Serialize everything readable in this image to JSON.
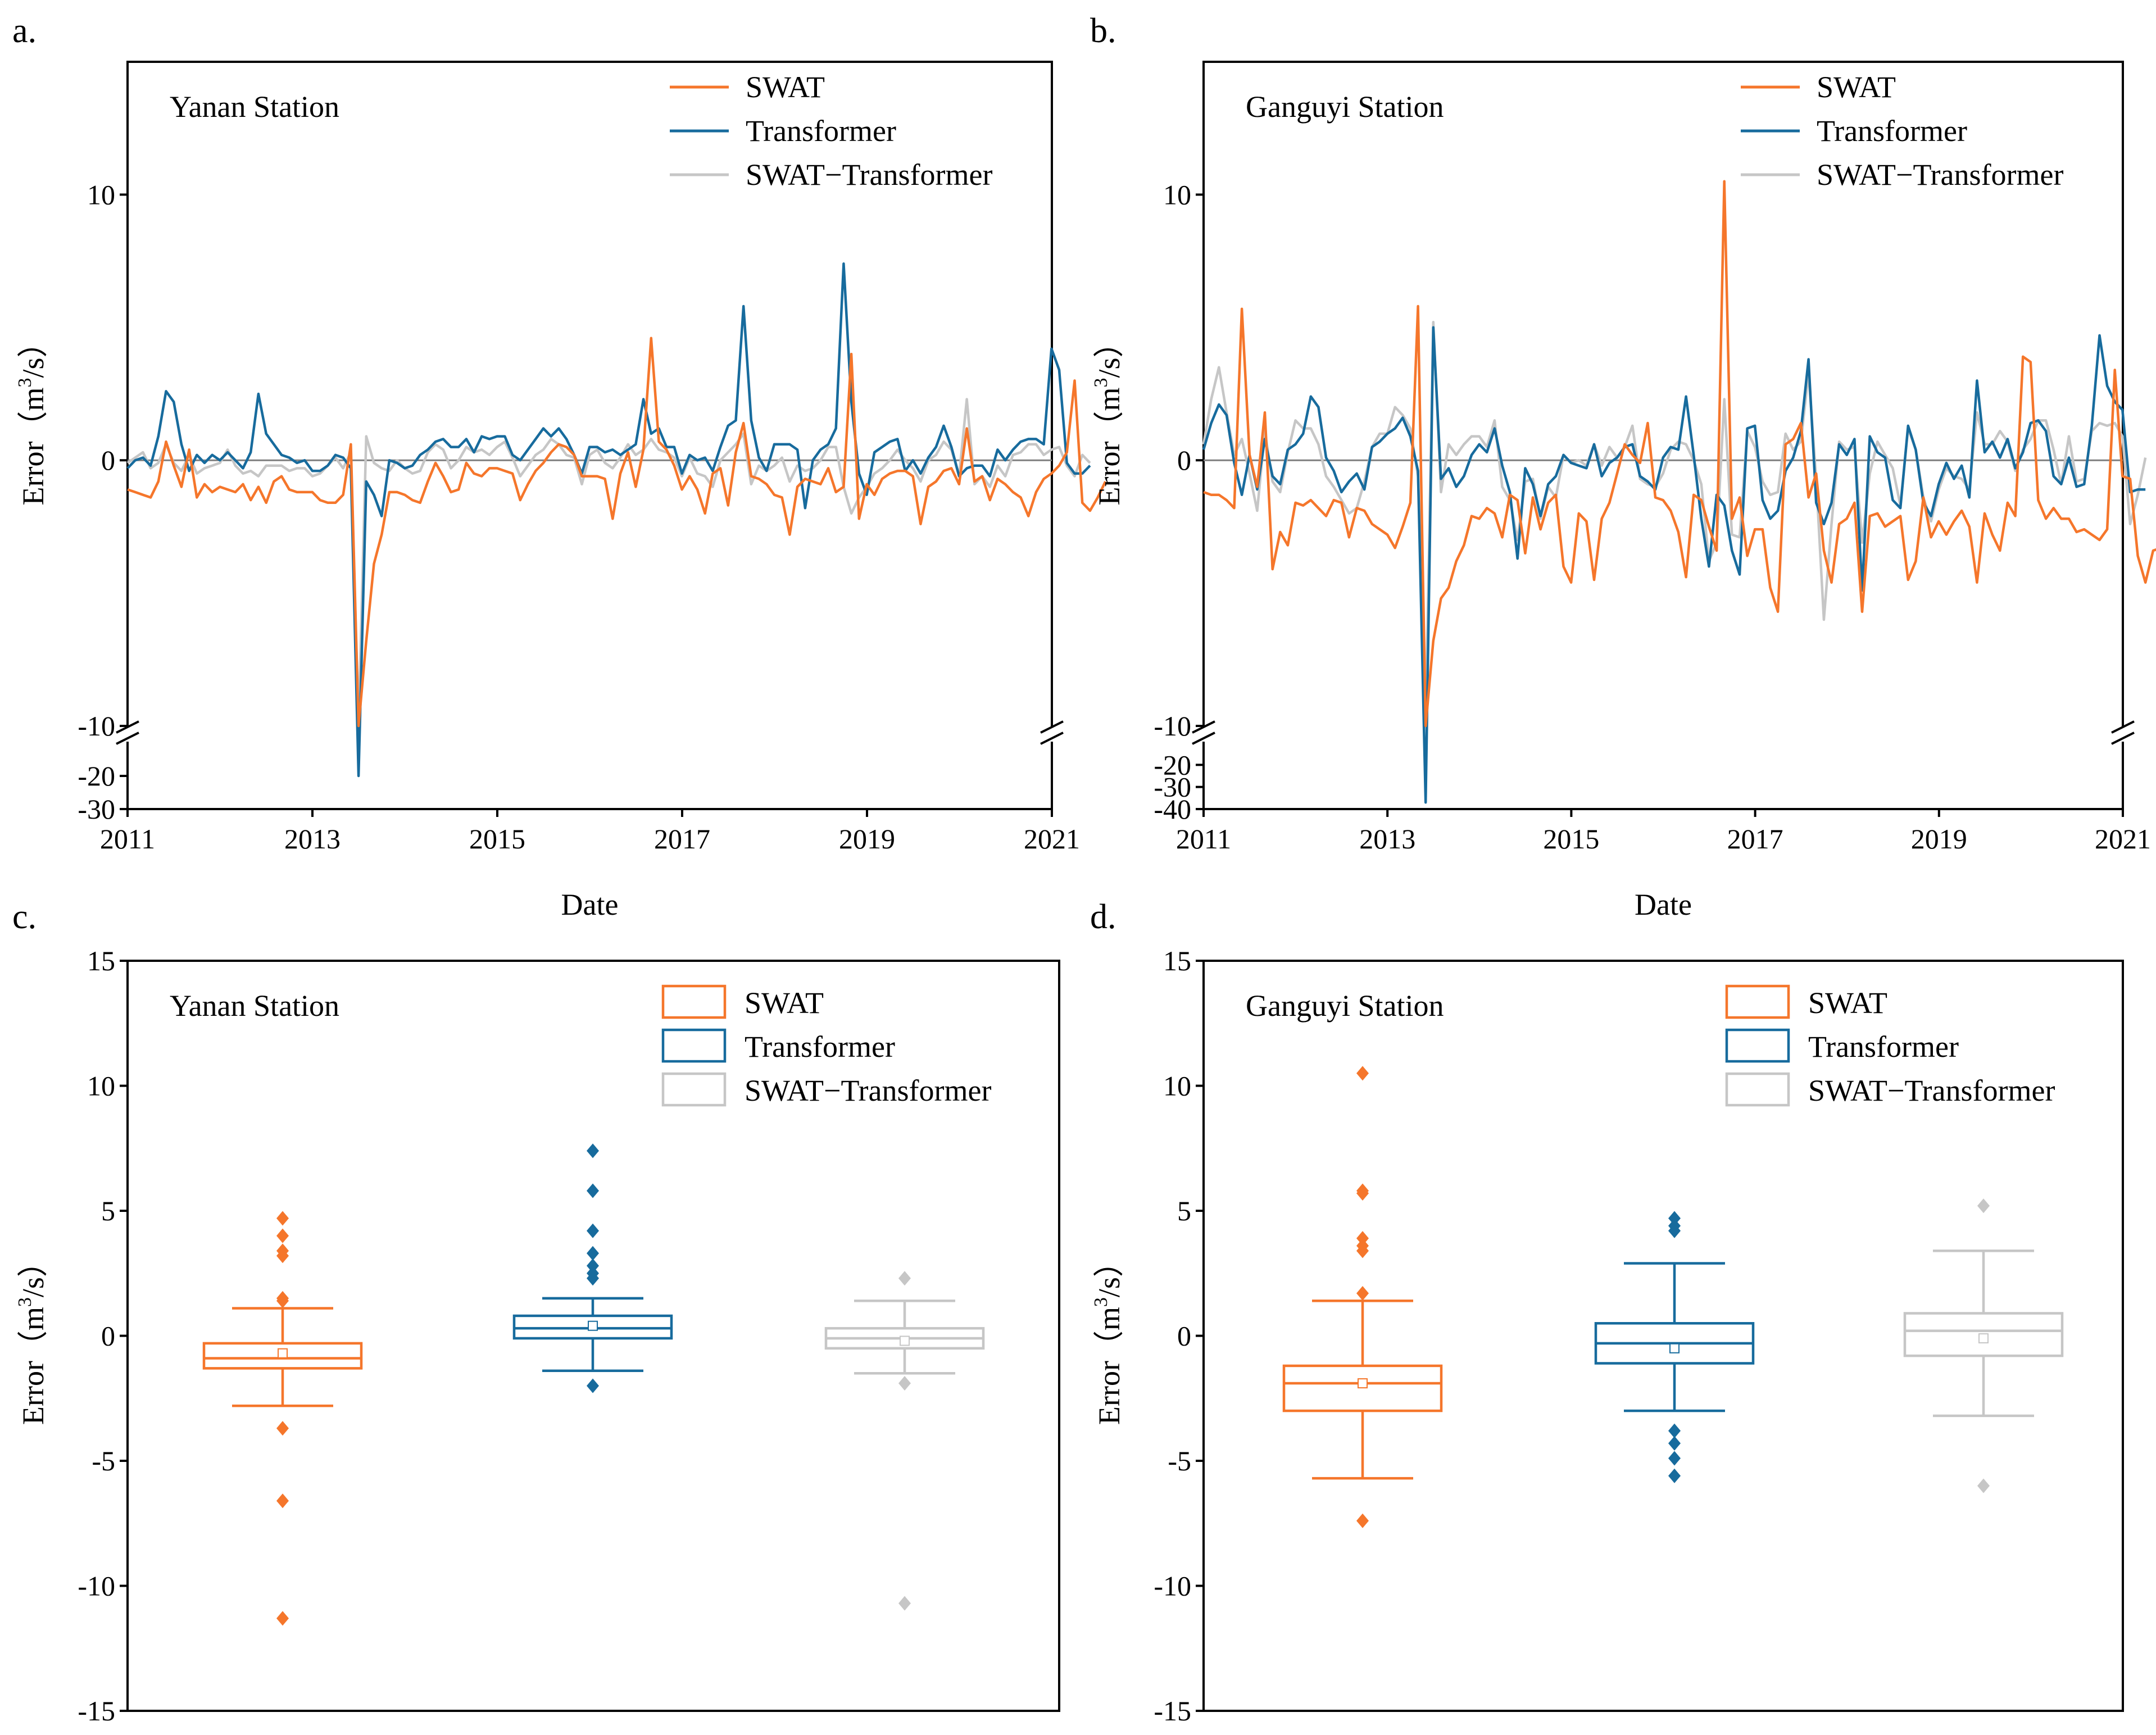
{
  "colors": {
    "swat": "#f5762b",
    "transformer": "#176b9d",
    "combo": "#c6c6c6",
    "zero_line": "#7f7f7f",
    "axis": "#000000"
  },
  "chart_data": [
    {
      "type": "line",
      "panel": "a.",
      "station": "Yanan Station",
      "xlabel": "Date",
      "ylabel": "Error（m³/s）",
      "ylabel_parts": {
        "prefix": "Error（m",
        "sup": "3",
        "suffix": "/s）"
      },
      "xlim": [
        2011,
        2021
      ],
      "x_ticks": [
        "2011",
        "2013",
        "2015",
        "2017",
        "2019",
        "2021"
      ],
      "ylim_upper": [
        -10,
        15
      ],
      "ylim_lower": [
        -30,
        -10
      ],
      "y_ticks_upper": [
        "10",
        "0",
        "-10"
      ],
      "y_ticks_lower": [
        "-20",
        "-30"
      ],
      "legend": [
        "SWAT",
        "Transformer",
        "SWAT−Transformer"
      ],
      "x_start": 2011.0,
      "x_step": 0.0833,
      "series": [
        {
          "name": "SWAT",
          "values": [
            -1.1,
            -1.2,
            -1.3,
            -1.4,
            -0.8,
            0.7,
            -0.2,
            -1.0,
            0.4,
            -1.4,
            -0.9,
            -1.2,
            -1.0,
            -1.1,
            -1.2,
            -0.9,
            -1.5,
            -1.0,
            -1.6,
            -0.8,
            -0.6,
            -1.1,
            -1.2,
            -1.2,
            -1.2,
            -1.5,
            -1.6,
            -1.6,
            -1.3,
            0.6,
            -10,
            -6.8,
            -3.9,
            -2.8,
            -1.2,
            -1.2,
            -1.3,
            -1.5,
            -1.6,
            -0.8,
            -0.1,
            -0.6,
            -1.2,
            -1.1,
            -0.1,
            -0.5,
            -0.6,
            -0.3,
            -0.3,
            -0.4,
            -0.5,
            -1.5,
            -0.9,
            -0.4,
            -0.1,
            0.3,
            0.6,
            0.5,
            0.2,
            -0.6,
            -0.6,
            -0.6,
            -0.7,
            -2.2,
            -0.5,
            0.3,
            -1.0,
            0.4,
            4.6,
            0.7,
            0.4,
            -0.2,
            -1.1,
            -0.6,
            -1.1,
            -2.0,
            -0.5,
            -0.3,
            -1.7,
            0.3,
            1.4,
            -0.6,
            -0.7,
            -0.9,
            -1.3,
            -1.4,
            -2.8,
            -1.0,
            -0.7,
            -0.8,
            -0.9,
            -0.3,
            -1.2,
            -1.0,
            4.0,
            -2.2,
            -0.9,
            -1.3,
            -0.7,
            -0.5,
            -0.4,
            -0.4,
            -0.6,
            -2.4,
            -1.0,
            -0.8,
            -0.4,
            -0.3,
            -0.9,
            1.2,
            -0.8,
            -0.6,
            -1.5,
            -0.7,
            -0.9,
            -1.2,
            -1.4,
            -2.1,
            -1.2,
            -0.7,
            -0.5,
            -0.2,
            0.3,
            3.0,
            -1.6,
            -1.9,
            -1.4,
            -0.8
          ]
        },
        {
          "name": "Transformer",
          "values": [
            -0.3,
            0.0,
            0.1,
            -0.2,
            0.9,
            2.6,
            2.2,
            0.6,
            -0.4,
            0.2,
            -0.1,
            0.2,
            0.0,
            0.3,
            0.0,
            -0.3,
            0.3,
            2.5,
            1.0,
            0.6,
            0.2,
            0.1,
            -0.1,
            0.0,
            -0.4,
            -0.4,
            -0.2,
            0.2,
            0.1,
            -0.3,
            -20.0,
            -0.8,
            -1.3,
            -2.1,
            0.0,
            -0.1,
            -0.3,
            -0.2,
            0.2,
            0.4,
            0.7,
            0.8,
            0.5,
            0.5,
            0.8,
            0.3,
            0.9,
            0.8,
            0.9,
            0.9,
            0.2,
            0.0,
            0.4,
            0.8,
            1.2,
            0.9,
            1.2,
            0.8,
            0.2,
            -0.5,
            0.5,
            0.5,
            0.3,
            0.4,
            0.2,
            0.4,
            0.6,
            2.3,
            1.0,
            1.2,
            0.5,
            0.5,
            -0.5,
            0.2,
            0.0,
            0.1,
            -0.4,
            0.5,
            1.3,
            1.5,
            5.8,
            1.5,
            0.1,
            -0.4,
            0.6,
            0.6,
            0.6,
            0.4,
            -1.8,
            0.0,
            0.4,
            0.6,
            1.2,
            7.4,
            2.2,
            -0.5,
            -1.3,
            0.3,
            0.5,
            0.7,
            0.8,
            -0.4,
            0.0,
            -0.5,
            0.1,
            0.5,
            1.3,
            0.5,
            -0.6,
            -0.3,
            -0.2,
            -0.2,
            -0.6,
            0.4,
            0.0,
            0.4,
            0.7,
            0.8,
            0.8,
            0.6,
            4.2,
            3.4,
            -0.1,
            -0.5,
            -0.5,
            -0.2
          ]
        },
        {
          "name": "SWAT−Transformer",
          "values": [
            -0.1,
            0.1,
            0.3,
            -0.3,
            -0.1,
            0.6,
            -0.1,
            -0.4,
            0.2,
            -0.5,
            -0.3,
            -0.2,
            -0.1,
            0.4,
            -0.2,
            -0.5,
            -0.4,
            -0.6,
            -0.2,
            -0.2,
            -0.2,
            -0.4,
            -0.3,
            -0.3,
            -0.6,
            -0.5,
            -0.2,
            0.1,
            -0.3,
            0.3,
            -10,
            0.9,
            -0.1,
            -0.3,
            -0.4,
            0.0,
            -0.3,
            -0.5,
            -0.4,
            0.3,
            0.6,
            0.4,
            -0.3,
            0.0,
            0.5,
            0.3,
            0.4,
            0.2,
            0.5,
            0.7,
            0.1,
            -0.6,
            -0.2,
            0.2,
            0.4,
            0.8,
            0.6,
            0.2,
            0.1,
            -0.9,
            0.2,
            0.4,
            -0.1,
            -0.3,
            0.1,
            0.6,
            0.2,
            0.4,
            0.8,
            0.4,
            0.3,
            0.1,
            -0.6,
            0.1,
            -0.5,
            -0.6,
            -1.0,
            0.0,
            0.3,
            0.6,
            1.0,
            -0.9,
            -0.2,
            -0.4,
            -0.2,
            0.1,
            -0.8,
            -0.2,
            -0.4,
            -0.3,
            0.0,
            0.5,
            0.5,
            -1.0,
            -2.0,
            -1.4,
            -1.0,
            -0.5,
            -0.3,
            0.0,
            0.4,
            0.0,
            -0.3,
            -0.8,
            0.0,
            0.2,
            0.7,
            0.4,
            -0.6,
            2.3,
            -0.9,
            -0.6,
            -1.0,
            -0.2,
            -0.6,
            0.2,
            0.3,
            0.6,
            0.6,
            0.2,
            0.4,
            0.5,
            -0.2,
            -0.6,
            0.2,
            -0.1
          ]
        }
      ]
    },
    {
      "type": "line",
      "panel": "b.",
      "station": "Ganguyi Station",
      "xlabel": "Date",
      "ylabel": "Error（m³/s）",
      "ylabel_parts": {
        "prefix": "Error（m",
        "sup": "3",
        "suffix": "/s）"
      },
      "xlim": [
        2011,
        2021
      ],
      "x_ticks": [
        "2011",
        "2013",
        "2015",
        "2017",
        "2019",
        "2021"
      ],
      "ylim_upper": [
        -10,
        15
      ],
      "ylim_lower": [
        -40,
        -10
      ],
      "y_ticks_upper": [
        "10",
        "0",
        "-10"
      ],
      "y_ticks_lower": [
        "-20",
        "-30",
        "-40"
      ],
      "legend": [
        "SWAT",
        "Transformer",
        "SWAT−Transformer"
      ],
      "x_start": 2011.0,
      "x_step": 0.0833,
      "series": [
        {
          "name": "SWAT",
          "values": [
            -1.2,
            -1.3,
            -1.3,
            -1.5,
            -1.8,
            5.7,
            0.2,
            -1.0,
            1.8,
            -4.1,
            -2.7,
            -3.2,
            -1.6,
            -1.7,
            -1.5,
            -1.8,
            -2.1,
            -1.5,
            -1.6,
            -2.9,
            -1.8,
            -1.9,
            -2.4,
            -2.6,
            -2.8,
            -3.3,
            -2.5,
            -1.6,
            5.8,
            -10,
            -6.8,
            -5.2,
            -4.8,
            -3.8,
            -3.2,
            -2.1,
            -2.2,
            -1.8,
            -2.0,
            -2.9,
            -1.3,
            -1.5,
            -3.5,
            -1.4,
            -2.6,
            -1.6,
            -1.3,
            -4.0,
            -4.6,
            -2.0,
            -2.3,
            -4.5,
            -2.2,
            -1.6,
            -0.5,
            0.6,
            0.2,
            -0.1,
            1.4,
            -1.4,
            -1.5,
            -1.9,
            -2.7,
            -4.4,
            -1.3,
            -1.5,
            -2.5,
            -3.4,
            10.5,
            -2.2,
            -1.4,
            -3.6,
            -2.6,
            -2.6,
            -4.8,
            -5.7,
            0.6,
            0.8,
            1.4,
            -1.4,
            -0.5,
            -3.4,
            -4.6,
            -2.4,
            -2.2,
            -1.6,
            -5.7,
            -2.1,
            -2.0,
            -2.5,
            -2.3,
            -2.1,
            -4.5,
            -3.8,
            -1.4,
            -2.9,
            -2.3,
            -2.8,
            -2.3,
            -1.9,
            -2.5,
            -4.6,
            -2.0,
            -2.8,
            -3.4,
            -1.6,
            -2.1,
            3.9,
            3.7,
            -1.5,
            -2.2,
            -1.8,
            -2.2,
            -2.2,
            -2.7,
            -2.6,
            -2.8,
            -3.0,
            -2.6,
            3.4,
            -0.6,
            -0.7,
            -3.6,
            -4.6,
            -3.4,
            -3.3
          ]
        },
        {
          "name": "Transformer",
          "values": [
            0.4,
            1.4,
            2.1,
            1.7,
            -0.1,
            -1.3,
            0.2,
            -1.1,
            0.8,
            -0.6,
            -0.9,
            0.4,
            0.6,
            1.0,
            2.4,
            2.0,
            0.1,
            -0.4,
            -1.2,
            -0.8,
            -0.5,
            -1.1,
            0.5,
            0.7,
            1.0,
            1.2,
            1.6,
            0.9,
            -0.4,
            -37.0,
            5.0,
            -0.7,
            -0.3,
            -1.0,
            -0.6,
            0.2,
            0.6,
            0.3,
            1.2,
            -0.2,
            -1.2,
            -3.7,
            -0.3,
            -0.9,
            -2.1,
            -0.9,
            -0.6,
            0.2,
            -0.1,
            -0.2,
            -0.3,
            0.6,
            -0.6,
            -0.1,
            0.1,
            0.5,
            0.6,
            -0.6,
            -0.8,
            -1.1,
            0.1,
            0.5,
            0.4,
            2.4,
            0.2,
            -2.2,
            -4.0,
            -1.3,
            -1.7,
            -3.4,
            -4.3,
            1.2,
            1.3,
            -1.5,
            -2.2,
            -1.9,
            -0.4,
            0.1,
            1.1,
            3.8,
            -1.6,
            -2.4,
            -1.6,
            0.6,
            0.2,
            0.8,
            -4.9,
            0.9,
            0.3,
            0.1,
            -1.5,
            -1.8,
            1.3,
            0.4,
            -1.6,
            -2.1,
            -0.9,
            -0.1,
            -0.7,
            -0.2,
            -1.4,
            3.0,
            0.3,
            0.7,
            0.1,
            0.8,
            -0.3,
            0.3,
            1.4,
            1.5,
            1.1,
            -0.6,
            -0.9,
            0.1,
            -1.0,
            -0.9,
            1.3,
            4.7,
            2.8,
            2.2,
            1.9,
            -1.2,
            -1.1,
            -1.1
          ]
        },
        {
          "name": "SWAT−Transformer",
          "values": [
            0.6,
            2.3,
            3.5,
            1.8,
            0.2,
            0.8,
            -0.5,
            -1.9,
            1.1,
            -0.8,
            -1.2,
            0.3,
            1.5,
            1.2,
            1.2,
            0.6,
            -0.6,
            -1.0,
            -1.5,
            -2.0,
            -1.8,
            -0.8,
            0.5,
            1.0,
            1.0,
            2.0,
            1.7,
            1.2,
            -0.6,
            -10,
            5.2,
            -1.2,
            0.6,
            0.2,
            0.6,
            0.9,
            0.9,
            0.5,
            1.5,
            -1.0,
            -1.5,
            -3.0,
            -0.8,
            -0.7,
            -2.2,
            -1.0,
            -1.4,
            0.2,
            -0.1,
            0.0,
            -0.2,
            0.6,
            -0.2,
            0.5,
            0.1,
            0.5,
            1.3,
            -0.7,
            -0.9,
            -1.0,
            -0.5,
            0.4,
            0.7,
            0.6,
            0.0,
            -0.9,
            -3.8,
            -3.1,
            2.3,
            -2.8,
            -2.9,
            1.1,
            0.5,
            -0.8,
            -1.3,
            -1.2,
            1.0,
            0.4,
            0.7,
            3.3,
            -0.7,
            -6.0,
            -2.4,
            0.7,
            0.4,
            0.5,
            -3.1,
            -0.5,
            0.7,
            0.2,
            -0.3,
            -1.7,
            1.2,
            0.4,
            -1.4,
            -2.3,
            -1.1,
            -0.3,
            -0.6,
            -0.7,
            -1.1,
            1.8,
            0.6,
            0.6,
            1.1,
            0.7,
            -0.4,
            0.4,
            0.8,
            1.5,
            1.5,
            0.4,
            -0.9,
            0.9,
            -0.8,
            -0.7,
            1.1,
            1.4,
            1.3,
            1.4,
            0.9,
            -2.4,
            -1.3,
            0.1
          ]
        }
      ]
    },
    {
      "type": "box",
      "panel": "c.",
      "station": "Yanan Station",
      "ylabel": "Error（m³/s）",
      "ylabel_parts": {
        "prefix": "Error（m",
        "sup": "3",
        "suffix": "/s）"
      },
      "ylim": [
        -15,
        15
      ],
      "y_ticks": [
        "15",
        "10",
        "5",
        "0",
        "-5",
        "-10",
        "-15"
      ],
      "legend": [
        "SWAT",
        "Transformer",
        "SWAT−Transformer"
      ],
      "boxes": [
        {
          "name": "SWAT",
          "q1": -1.3,
          "median": -0.9,
          "q3": -0.3,
          "whisker_low": -2.8,
          "whisker_high": 1.1,
          "mean": -0.7,
          "outliers": [
            4.7,
            4.0,
            3.4,
            3.2,
            1.5,
            1.4,
            -3.7,
            -6.6,
            -11.3
          ]
        },
        {
          "name": "Transformer",
          "q1": -0.1,
          "median": 0.3,
          "q3": 0.8,
          "whisker_low": -1.4,
          "whisker_high": 1.5,
          "mean": 0.4,
          "outliers": [
            7.4,
            5.8,
            4.2,
            3.3,
            2.8,
            2.5,
            2.3,
            -2.0
          ]
        },
        {
          "name": "SWAT−Transformer",
          "q1": -0.5,
          "median": -0.1,
          "q3": 0.3,
          "whisker_low": -1.5,
          "whisker_high": 1.4,
          "mean": -0.2,
          "outliers": [
            2.3,
            -1.9,
            -10.7
          ]
        }
      ]
    },
    {
      "type": "box",
      "panel": "d.",
      "station": "Ganguyi Station",
      "ylabel": "Error（m³/s）",
      "ylabel_parts": {
        "prefix": "Error（m",
        "sup": "3",
        "suffix": "/s）"
      },
      "ylim": [
        -15,
        15
      ],
      "y_ticks": [
        "15",
        "10",
        "5",
        "0",
        "-5",
        "-10",
        "-15"
      ],
      "legend": [
        "SWAT",
        "Transformer",
        "SWAT−Transformer"
      ],
      "boxes": [
        {
          "name": "SWAT",
          "q1": -3.0,
          "median": -1.9,
          "q3": -1.2,
          "whisker_low": -5.7,
          "whisker_high": 1.4,
          "mean": -1.9,
          "outliers": [
            10.5,
            5.8,
            5.7,
            3.9,
            3.6,
            3.4,
            1.7,
            -7.4
          ]
        },
        {
          "name": "Transformer",
          "q1": -1.1,
          "median": -0.3,
          "q3": 0.5,
          "whisker_low": -3.0,
          "whisker_high": 2.9,
          "mean": -0.5,
          "outliers": [
            4.7,
            4.4,
            4.2,
            -3.8,
            -4.3,
            -4.9,
            -5.6
          ]
        },
        {
          "name": "SWAT−Transformer",
          "q1": -0.8,
          "median": 0.2,
          "q3": 0.9,
          "whisker_low": -3.2,
          "whisker_high": 3.4,
          "mean": -0.1,
          "outliers": [
            5.2,
            -6.0
          ]
        }
      ]
    }
  ]
}
